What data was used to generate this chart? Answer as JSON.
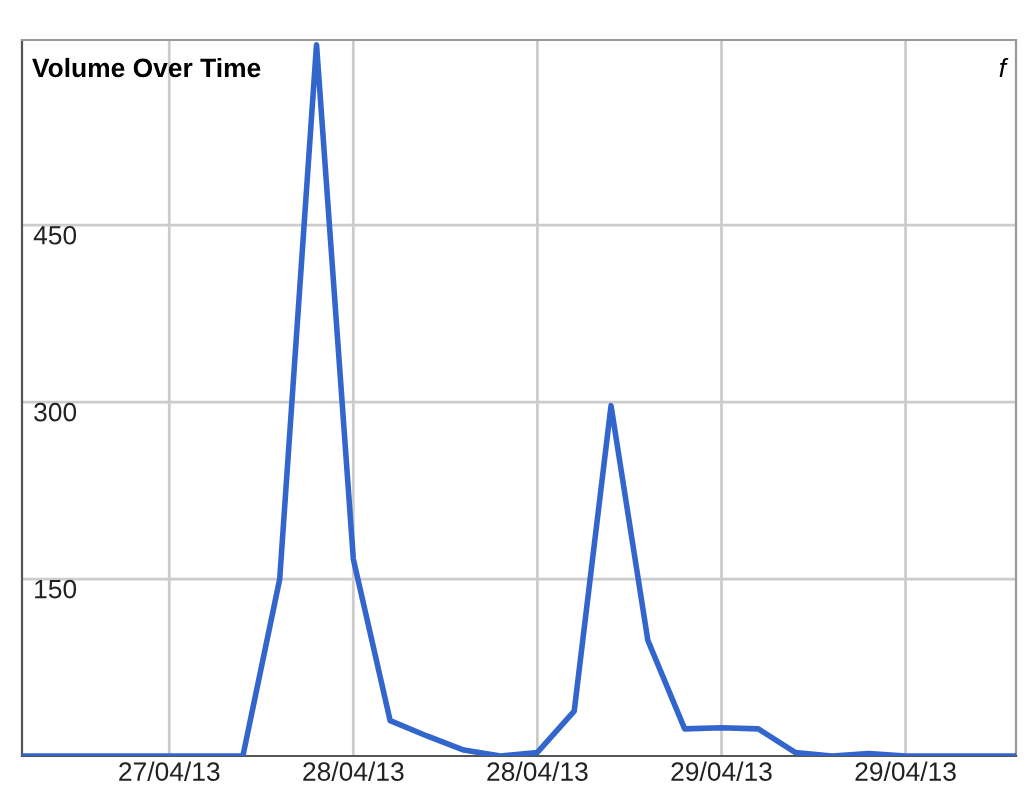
{
  "chart_data": {
    "type": "line",
    "title": "Volume Over Time",
    "annotations": [
      "f"
    ],
    "categories": [
      null,
      null,
      null,
      null,
      "27/04/13",
      null,
      null,
      null,
      null,
      "28/04/13",
      null,
      null,
      null,
      null,
      "28/04/13",
      null,
      null,
      null,
      null,
      "29/04/13",
      null,
      null,
      null,
      null,
      "29/04/13",
      null,
      null,
      null
    ],
    "series": [
      {
        "color": "#3366cc",
        "values": [
          0,
          0,
          0,
          0,
          0,
          0,
          0,
          150,
          603,
          167,
          30,
          17,
          5,
          0,
          3,
          38,
          297,
          98,
          23,
          24,
          23,
          3,
          0,
          2,
          0,
          0,
          0,
          0
        ]
      }
    ],
    "ylim": [
      0,
      607
    ],
    "yticks": [
      150,
      300,
      450
    ],
    "grid": true,
    "marker": "none",
    "line_style": "solid"
  }
}
